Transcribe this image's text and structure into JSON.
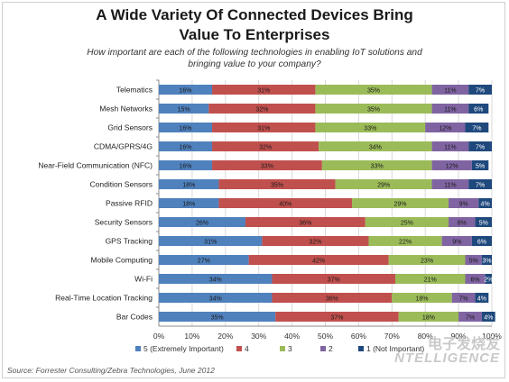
{
  "chart_data": {
    "type": "bar",
    "orientation": "horizontal-stacked-100",
    "title_line1": "A Wide Variety Of Connected Devices Bring",
    "title_line2": "Value To Enterprises",
    "subtitle_line1": "How important are each of the following technologies in enabling IoT solutions and",
    "subtitle_line2": "bringing value to your company?",
    "categories": [
      "Telematics",
      "Mesh Networks",
      "Grid Sensors",
      "CDMA/GPRS/4G",
      "Near-Field Communication (NFC)",
      "Condition Sensors",
      "Passive RFID",
      "Security Sensors",
      "GPS Tracking",
      "Mobile Computing",
      "Wi-Fi",
      "Real-Time Location Tracking",
      "Bar Codes"
    ],
    "series": [
      {
        "name": "5 (Extremely Important)",
        "color": "#4f81bd",
        "values": [
          16,
          15,
          16,
          16,
          16,
          18,
          18,
          26,
          31,
          27,
          34,
          34,
          35
        ]
      },
      {
        "name": "4",
        "color": "#c0504d",
        "values": [
          31,
          32,
          31,
          32,
          33,
          35,
          40,
          36,
          32,
          42,
          37,
          36,
          37
        ]
      },
      {
        "name": "3",
        "color": "#9bbb59",
        "values": [
          35,
          35,
          33,
          34,
          33,
          29,
          29,
          25,
          22,
          23,
          21,
          18,
          18
        ]
      },
      {
        "name": "2",
        "color": "#8064a2",
        "values": [
          11,
          11,
          12,
          11,
          12,
          11,
          9,
          8,
          9,
          5,
          6,
          7,
          7
        ]
      },
      {
        "name": "1 (Not Important)",
        "color": "#1f497d",
        "values": [
          7,
          6,
          7,
          7,
          5,
          7,
          4,
          5,
          6,
          3,
          2,
          4,
          4
        ]
      }
    ],
    "label_texts": [
      [
        "16%",
        "31%",
        "35%",
        "11%",
        "7%"
      ],
      [
        "15%",
        "32%",
        "35%",
        "11%",
        "6%"
      ],
      [
        "16%",
        "31%",
        "33%",
        "12%",
        "7%"
      ],
      [
        "16%",
        "32%",
        "34%",
        "11%",
        "7%"
      ],
      [
        "16%",
        "33%",
        "33%",
        "12%",
        "5%"
      ],
      [
        "18%",
        "35%",
        "29%",
        "11%",
        "7%"
      ],
      [
        "18%",
        "40%",
        "29%",
        "9%",
        "4%"
      ],
      [
        "26%",
        "36%",
        "25%",
        "8%",
        "5%"
      ],
      [
        "31%",
        "32%",
        "22%",
        "9%",
        "6%"
      ],
      [
        "27%",
        "42%",
        "23%",
        "5%",
        "3%"
      ],
      [
        "34%",
        "37%",
        "21%",
        "6%",
        "2%"
      ],
      [
        "34%",
        "36%",
        "18%",
        "7%",
        "4%"
      ],
      [
        "35%",
        "37%",
        "18%",
        "7%",
        "4%"
      ]
    ],
    "x_ticks": [
      "0%",
      "10%",
      "20%",
      "30%",
      "40%",
      "50%",
      "60%",
      "70%",
      "80%",
      "90%",
      "100%"
    ],
    "xlim": [
      0,
      100
    ],
    "legend_position": "bottom",
    "grid": true,
    "source": "Source: Forrester Consulting/Zebra Technologies, June 2012"
  },
  "watermark": {
    "line1": "电子发烧友",
    "line2": "NTELLIGENCE"
  }
}
